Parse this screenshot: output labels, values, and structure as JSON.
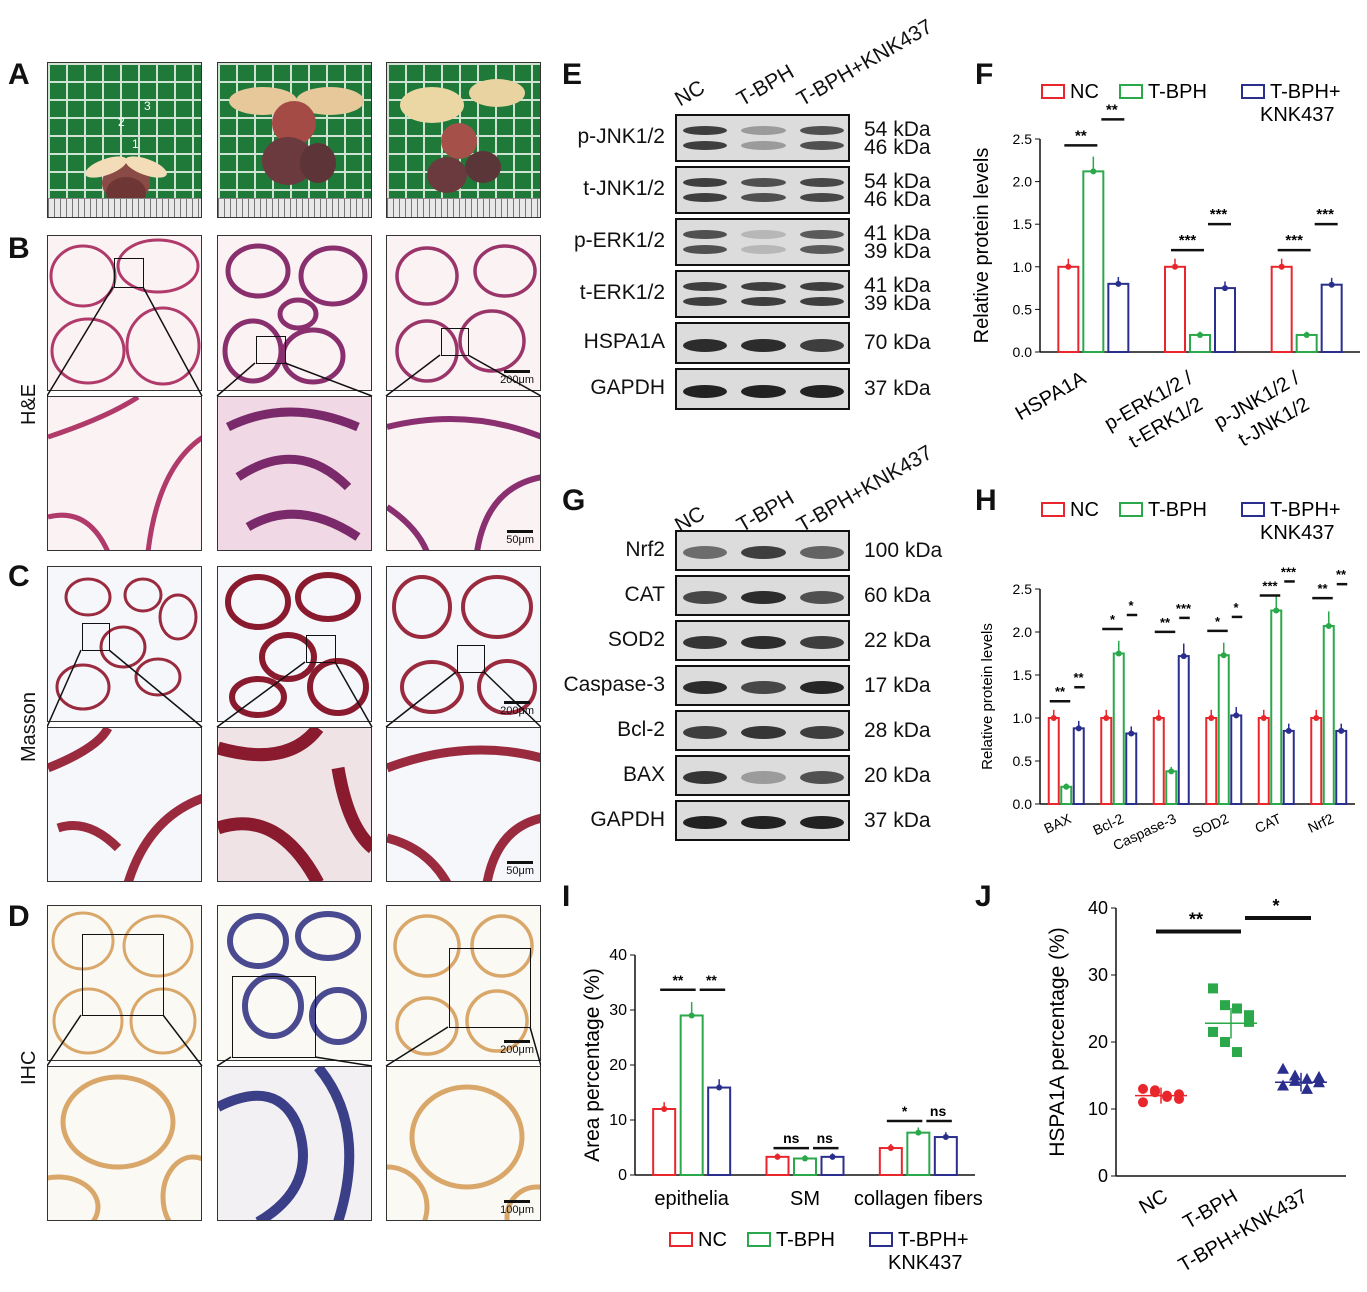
{
  "panels": {
    "A": "A",
    "B": "B",
    "C": "C",
    "D": "D",
    "E": "E",
    "F": "F",
    "G": "G",
    "H": "H",
    "I": "I",
    "J": "J"
  },
  "row_labels": {
    "B": "H&E",
    "C": "Masson",
    "D": "IHC"
  },
  "photo_labels": {
    "one": "1",
    "two": "2",
    "three": "3"
  },
  "scale_bars": {
    "B_top": "200μm",
    "B_bottom": "50μm",
    "C_top": "200μm",
    "C_bottom": "50μm",
    "D_top": "200μm",
    "D_bottom": "100μm"
  },
  "colors": {
    "NC": "#e8262b",
    "T_BPH": "#2aa84a",
    "KNK": "#2a2e8c"
  },
  "blot_E": {
    "lanes": [
      "NC",
      "T-BPH",
      "T-BPH+KNK437"
    ],
    "rows": [
      {
        "name": "p-JNK1/2",
        "kda": [
          "54 kDa",
          "46 kDa"
        ]
      },
      {
        "name": "t-JNK1/2",
        "kda": [
          "54 kDa",
          "46 kDa"
        ]
      },
      {
        "name": "p-ERK1/2",
        "kda": [
          "41 kDa",
          "39 kDa"
        ]
      },
      {
        "name": "t-ERK1/2",
        "kda": [
          "41 kDa",
          "39 kDa"
        ]
      },
      {
        "name": "HSPA1A",
        "kda": [
          "70 kDa"
        ]
      },
      {
        "name": "GAPDH",
        "kda": [
          "37 kDa"
        ]
      }
    ]
  },
  "blot_G": {
    "lanes": [
      "NC",
      "T-BPH",
      "T-BPH+KNK437"
    ],
    "rows": [
      {
        "name": "Nrf2",
        "kda": [
          "100 kDa"
        ]
      },
      {
        "name": "CAT",
        "kda": [
          "60 kDa"
        ]
      },
      {
        "name": "SOD2",
        "kda": [
          "22 kDa"
        ]
      },
      {
        "name": "Caspase-3",
        "kda": [
          "17 kDa"
        ]
      },
      {
        "name": "Bcl-2",
        "kda": [
          "28 kDa"
        ]
      },
      {
        "name": "BAX",
        "kda": [
          "20 kDa"
        ]
      },
      {
        "name": "GAPDH",
        "kda": [
          "37 kDa"
        ]
      }
    ]
  },
  "legend": {
    "NC": "NC",
    "T_BPH": "T-BPH",
    "KNK_line1": "T-BPH+",
    "KNK_line2": "KNK437"
  },
  "chart_data": [
    {
      "panel": "F",
      "type": "bar",
      "ylabel": "Relative protein levels",
      "ylim": [
        0,
        2.5
      ],
      "yticks": [
        "0.0",
        "0.5",
        "1.0",
        "1.5",
        "2.0",
        "2.5"
      ],
      "categories": [
        "HSPA1A",
        "p-ERK1/2 / t-ERK1/2",
        "p-JNK1/2 / t-JNK1/2"
      ],
      "series": [
        {
          "name": "NC",
          "values": [
            1.0,
            1.0,
            1.0
          ]
        },
        {
          "name": "T-BPH",
          "values": [
            2.12,
            0.2,
            0.2
          ]
        },
        {
          "name": "T-BPH+ KNK437",
          "values": [
            0.8,
            0.75,
            0.79
          ]
        }
      ],
      "significance": [
        [
          "**",
          "**"
        ],
        [
          "***",
          "***"
        ],
        [
          "***",
          "***"
        ]
      ]
    },
    {
      "panel": "H",
      "type": "bar",
      "ylabel": "Relative protein levels",
      "ylim": [
        0,
        2.5
      ],
      "yticks": [
        "0.0",
        "0.5",
        "1.0",
        "1.5",
        "2.0",
        "2.5"
      ],
      "categories": [
        "BAX",
        "Bcl-2",
        "Caspase-3",
        "SOD2",
        "CAT",
        "Nrf2"
      ],
      "series": [
        {
          "name": "NC",
          "values": [
            1.0,
            1.0,
            1.0,
            1.0,
            1.0,
            1.0
          ]
        },
        {
          "name": "T-BPH",
          "values": [
            0.2,
            1.75,
            0.38,
            1.73,
            2.25,
            2.07
          ]
        },
        {
          "name": "T-BPH+ KNK437",
          "values": [
            0.88,
            0.82,
            1.72,
            1.03,
            0.85,
            0.85
          ]
        }
      ],
      "significance": [
        [
          "**",
          "**"
        ],
        [
          "*",
          "*"
        ],
        [
          "**",
          "***"
        ],
        [
          "*",
          "*"
        ],
        [
          "***",
          "***"
        ],
        [
          "**",
          "**"
        ]
      ]
    },
    {
      "panel": "I",
      "type": "bar",
      "ylabel": "Area percentage (%)",
      "ylim": [
        0,
        40
      ],
      "yticks": [
        "0",
        "10",
        "20",
        "30",
        "40"
      ],
      "categories": [
        "epithelia",
        "SM",
        "collagen fibers"
      ],
      "series": [
        {
          "name": "NC",
          "values": [
            12,
            3.3,
            4.9
          ]
        },
        {
          "name": "T-BPH",
          "values": [
            29,
            3.0,
            7.7
          ]
        },
        {
          "name": "T-BPH+ KNK437",
          "values": [
            15.9,
            3.3,
            6.9
          ]
        }
      ],
      "significance": [
        [
          "**",
          "**"
        ],
        [
          "ns",
          "ns"
        ],
        [
          "*",
          "ns"
        ]
      ]
    },
    {
      "panel": "J",
      "type": "scatter",
      "ylabel": "HSPA1A percentage (%)",
      "ylim": [
        0,
        40
      ],
      "yticks": [
        "0",
        "10",
        "20",
        "30",
        "40"
      ],
      "categories": [
        "NC",
        "T-BPH",
        "T-BPH+KNK437"
      ],
      "means": [
        12,
        22.8,
        14
      ],
      "points": [
        [
          13,
          12.5,
          12,
          11.5,
          11,
          12.8,
          11.8,
          12.2
        ],
        [
          28,
          25.5,
          25,
          24,
          21.5,
          20,
          18.5,
          23
        ],
        [
          16,
          15,
          14.5,
          14,
          13.5,
          14.2,
          13,
          14.8
        ]
      ],
      "significance": [
        "**",
        "*"
      ]
    }
  ]
}
